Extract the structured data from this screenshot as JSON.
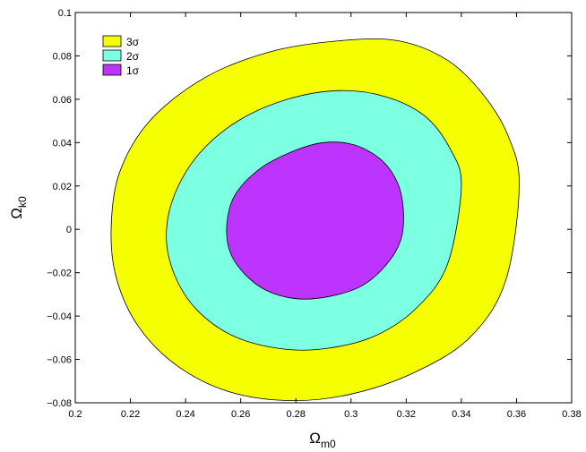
{
  "chart_data": {
    "type": "contour",
    "xlabel": {
      "main": "Ω",
      "sub": "m0"
    },
    "ylabel": {
      "main": "Ω",
      "sub": "k0"
    },
    "xlim": [
      0.2,
      0.38
    ],
    "ylim": [
      -0.08,
      0.1
    ],
    "xticks": [
      0.2,
      0.22,
      0.24,
      0.26,
      0.28,
      0.3,
      0.32,
      0.34,
      0.36,
      0.38
    ],
    "yticks": [
      -0.08,
      -0.06,
      -0.04,
      -0.02,
      0,
      0.02,
      0.04,
      0.06,
      0.08,
      0.1
    ],
    "xtick_labels": [
      "0.2",
      "0.22",
      "0.24",
      "0.26",
      "0.28",
      "0.3",
      "0.32",
      "0.34",
      "0.36",
      "0.38"
    ],
    "ytick_labels": [
      "−0.08",
      "−0.06",
      "−0.04",
      "−0.02",
      "0",
      "0.02",
      "0.04",
      "0.06",
      "0.08",
      "0.1"
    ],
    "grid": false,
    "legend_position": "top-left",
    "series": [
      {
        "name": "3σ",
        "color": "#f5ff00",
        "points": [
          [
            0.361,
            0.02
          ],
          [
            0.357,
            0.043
          ],
          [
            0.348,
            0.062
          ],
          [
            0.335,
            0.078
          ],
          [
            0.317,
            0.087
          ],
          [
            0.296,
            0.087
          ],
          [
            0.271,
            0.082
          ],
          [
            0.247,
            0.07
          ],
          [
            0.227,
            0.05
          ],
          [
            0.216,
            0.026
          ],
          [
            0.213,
            0.0
          ],
          [
            0.215,
            -0.023
          ],
          [
            0.223,
            -0.045
          ],
          [
            0.237,
            -0.063
          ],
          [
            0.256,
            -0.075
          ],
          [
            0.278,
            -0.079
          ],
          [
            0.3,
            -0.076
          ],
          [
            0.323,
            -0.066
          ],
          [
            0.343,
            -0.05
          ],
          [
            0.356,
            -0.024
          ]
        ]
      },
      {
        "name": "2σ",
        "color": "#7dffe2",
        "points": [
          [
            0.34,
            0.02
          ],
          [
            0.336,
            0.037
          ],
          [
            0.327,
            0.052
          ],
          [
            0.313,
            0.061
          ],
          [
            0.296,
            0.064
          ],
          [
            0.277,
            0.06
          ],
          [
            0.259,
            0.05
          ],
          [
            0.245,
            0.035
          ],
          [
            0.236,
            0.016
          ],
          [
            0.233,
            -0.003
          ],
          [
            0.236,
            -0.021
          ],
          [
            0.244,
            -0.037
          ],
          [
            0.257,
            -0.049
          ],
          [
            0.274,
            -0.055
          ],
          [
            0.291,
            -0.055
          ],
          [
            0.309,
            -0.049
          ],
          [
            0.324,
            -0.036
          ],
          [
            0.335,
            -0.016
          ]
        ]
      },
      {
        "name": "1σ",
        "color": "#bd33ff",
        "points": [
          [
            0.319,
            0.008
          ],
          [
            0.317,
            0.021
          ],
          [
            0.311,
            0.032
          ],
          [
            0.301,
            0.039
          ],
          [
            0.29,
            0.04
          ],
          [
            0.279,
            0.036
          ],
          [
            0.267,
            0.028
          ],
          [
            0.258,
            0.016
          ],
          [
            0.255,
            0.003
          ],
          [
            0.256,
            -0.01
          ],
          [
            0.261,
            -0.02
          ],
          [
            0.269,
            -0.028
          ],
          [
            0.28,
            -0.032
          ],
          [
            0.292,
            -0.031
          ],
          [
            0.304,
            -0.026
          ],
          [
            0.313,
            -0.016
          ],
          [
            0.318,
            -0.005
          ]
        ]
      }
    ],
    "legend": [
      {
        "label": "3σ",
        "color": "#f5ff00"
      },
      {
        "label": "2σ",
        "color": "#7dffe2"
      },
      {
        "label": "1σ",
        "color": "#bd33ff"
      }
    ]
  }
}
